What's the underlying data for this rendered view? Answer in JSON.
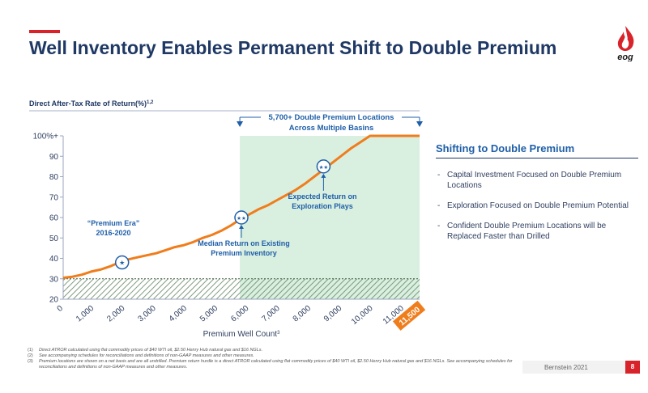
{
  "header": {
    "title": "Well Inventory Enables Permanent Shift to Double Premium",
    "logo_text": "eog"
  },
  "chart_data": {
    "type": "line",
    "ylabel": "Direct After-Tax Rate of Return(%)",
    "ylabel_sup": "1,2",
    "xlabel": "Premium Well Count",
    "xlabel_sup": "3",
    "xlim": [
      0,
      11500
    ],
    "ylim": [
      20,
      100
    ],
    "y_ticks": [
      "20",
      "30",
      "40",
      "50",
      "60",
      "70",
      "80",
      "90",
      "100%+"
    ],
    "y_tick_values": [
      20,
      30,
      40,
      50,
      60,
      70,
      80,
      90,
      100
    ],
    "x_ticks": [
      "0",
      "1,000",
      "2,000",
      "3,000",
      "4,000",
      "5,000",
      "6,000",
      "7,000",
      "8,000",
      "9,000",
      "10,000",
      "11,000"
    ],
    "x_tick_values": [
      0,
      1000,
      2000,
      3000,
      4000,
      5000,
      6000,
      7000,
      8000,
      9000,
      10000,
      11000
    ],
    "x_end_label": "11,500",
    "x_end_value": 11500,
    "line_color": "#f07d1c",
    "shade_color": "#d9efe0",
    "series": [
      {
        "x": [
          0,
          300,
          600,
          900,
          1200,
          1500,
          1800,
          2100,
          2400,
          2700,
          3000,
          3300,
          3600,
          3900,
          4200,
          4500,
          4800,
          5100,
          5400,
          5700,
          6000,
          6300,
          6600,
          6900,
          7200,
          7500,
          7800,
          8100,
          8400,
          8700,
          9000,
          9300,
          9600,
          9900,
          10200,
          10500,
          10800,
          11100,
          11500
        ],
        "y": [
          30.5,
          31,
          32,
          33.5,
          34.5,
          36,
          38,
          39.5,
          40.5,
          41.5,
          42.5,
          44,
          45.5,
          46.5,
          48,
          50,
          51.5,
          53.5,
          56,
          59,
          61.5,
          64,
          66,
          68.5,
          71,
          73.5,
          76.5,
          80,
          83.5,
          87,
          90.5,
          94,
          97,
          100,
          100,
          100,
          100,
          100,
          100
        ]
      }
    ],
    "shaded_region": {
      "x_start": 5700,
      "x_end": 11500
    },
    "hurdle": {
      "value": 30
    },
    "annotations": [
      {
        "label_lines": [
          "“Premium Era”",
          "2016-2020"
        ],
        "marker": "★",
        "x": 1900,
        "y": 38
      },
      {
        "label_lines": [
          "Median Return on Existing",
          "Premium Inventory"
        ],
        "marker": "★★",
        "x": 5750,
        "y": 60
      },
      {
        "label_lines": [
          "Expected Return on",
          "Exploration Plays"
        ],
        "marker": "★★",
        "x": 8400,
        "y": 85
      }
    ],
    "callout": {
      "lines": [
        "5,700+ Double Premium Locations",
        "Across Multiple Basins"
      ]
    }
  },
  "side_panel": {
    "title": "Shifting to Double Premium",
    "bullets": [
      "Capital Investment Focused on Double Premium Locations",
      "Exploration Focused on Double Premium Potential",
      "Confident Double Premium Locations will be Replaced Faster than Drilled"
    ]
  },
  "footnotes": [
    {
      "num": "(1)",
      "text": "Direct ATROR calculated using flat commodity prices of $40 WTI oil, $2.50 Henry Hub natural gas and $16 NGLs."
    },
    {
      "num": "(2)",
      "text": "See accompanying schedules for reconciliations and definitions of non-GAAP measures and other measures."
    },
    {
      "num": "(3)",
      "text": "Premium locations are shown on a net basis and are all undrilled. Premium return hurdle is a direct ATROR calculated using flat commodity prices of $40 WTI oil, $2.50 Henry Hub natural gas and $16 NGLs. See accompanying schedules for reconciliations and definitions of non-GAAP measures and other measures."
    }
  ],
  "footer": {
    "source": "Bernstein 2021",
    "page": "8"
  }
}
